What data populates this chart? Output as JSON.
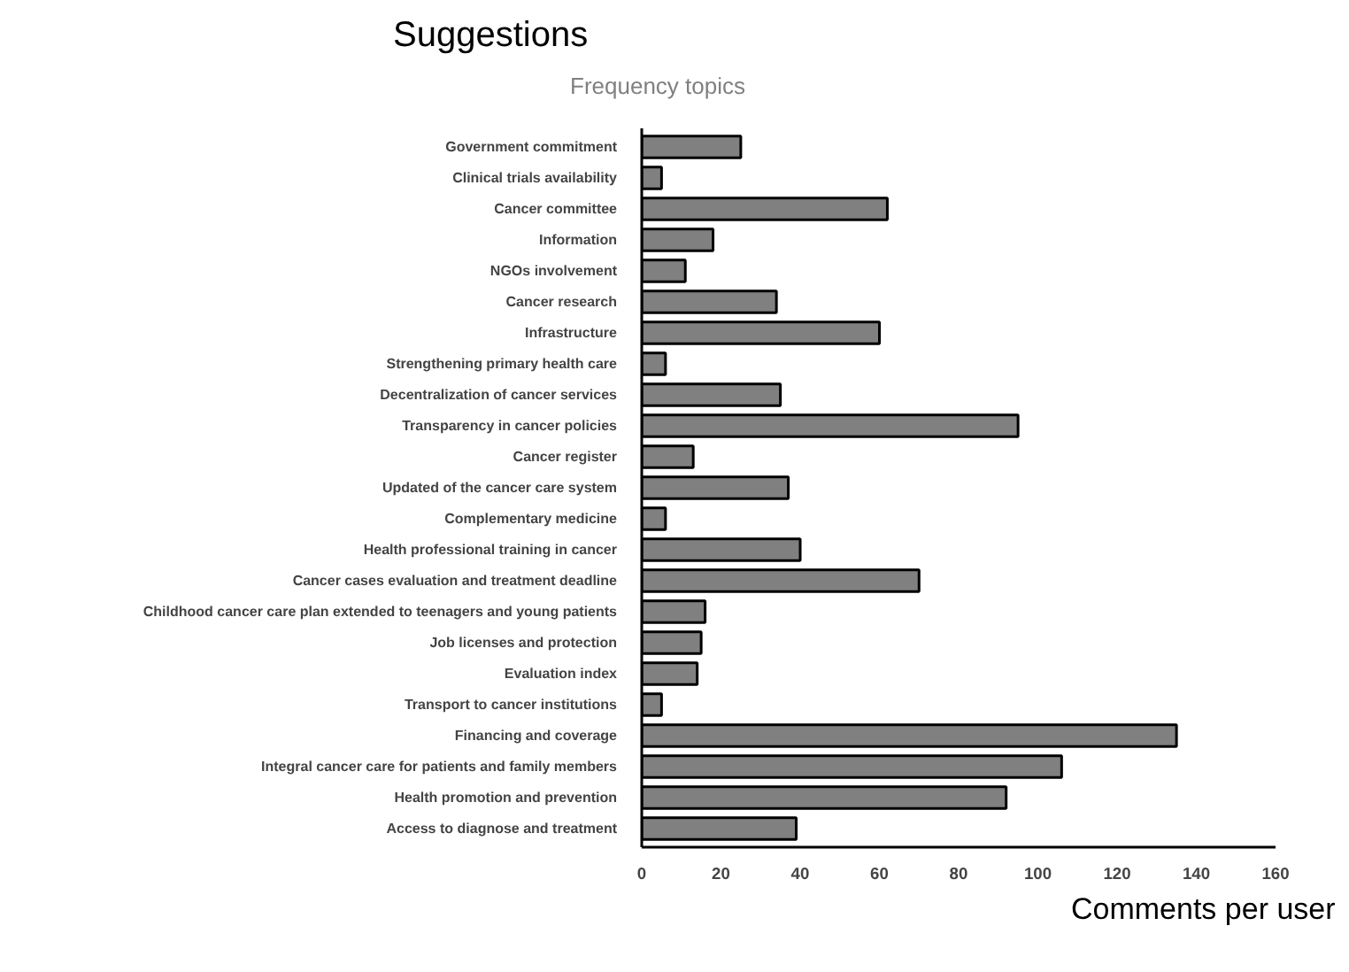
{
  "chart_data": {
    "type": "bar",
    "orientation": "horizontal",
    "title": "Suggestions",
    "subtitle": "Frequency topics",
    "xlabel": "Comments per user",
    "categories": [
      "Government commitment",
      "Clinical trials availability",
      "Cancer committee",
      "Information",
      "NGOs involvement",
      "Cancer research",
      "Infrastructure",
      "Strengthening primary health care",
      "Decentralization of cancer services",
      "Transparency in cancer policies",
      "Cancer register",
      "Updated of the cancer care system",
      "Complementary medicine",
      "Health professional training in cancer",
      "Cancer cases evaluation and treatment deadline",
      "Childhood cancer care plan extended to teenagers and young patients",
      "Job licenses and protection",
      "Evaluation index",
      "Transport to cancer institutions",
      "Financing and coverage",
      "Integral cancer care for patients and family members",
      "Health promotion and prevention",
      "Access to diagnose and treatment"
    ],
    "values": [
      25,
      5,
      62,
      18,
      11,
      34,
      60,
      6,
      35,
      95,
      13,
      37,
      6,
      40,
      70,
      16,
      15,
      14,
      5,
      135,
      106,
      92,
      39
    ],
    "color": "#808080",
    "xlim": [
      0,
      160
    ],
    "xticks": [
      0,
      20,
      40,
      60,
      80,
      100,
      120,
      140,
      160
    ],
    "grid": false
  }
}
